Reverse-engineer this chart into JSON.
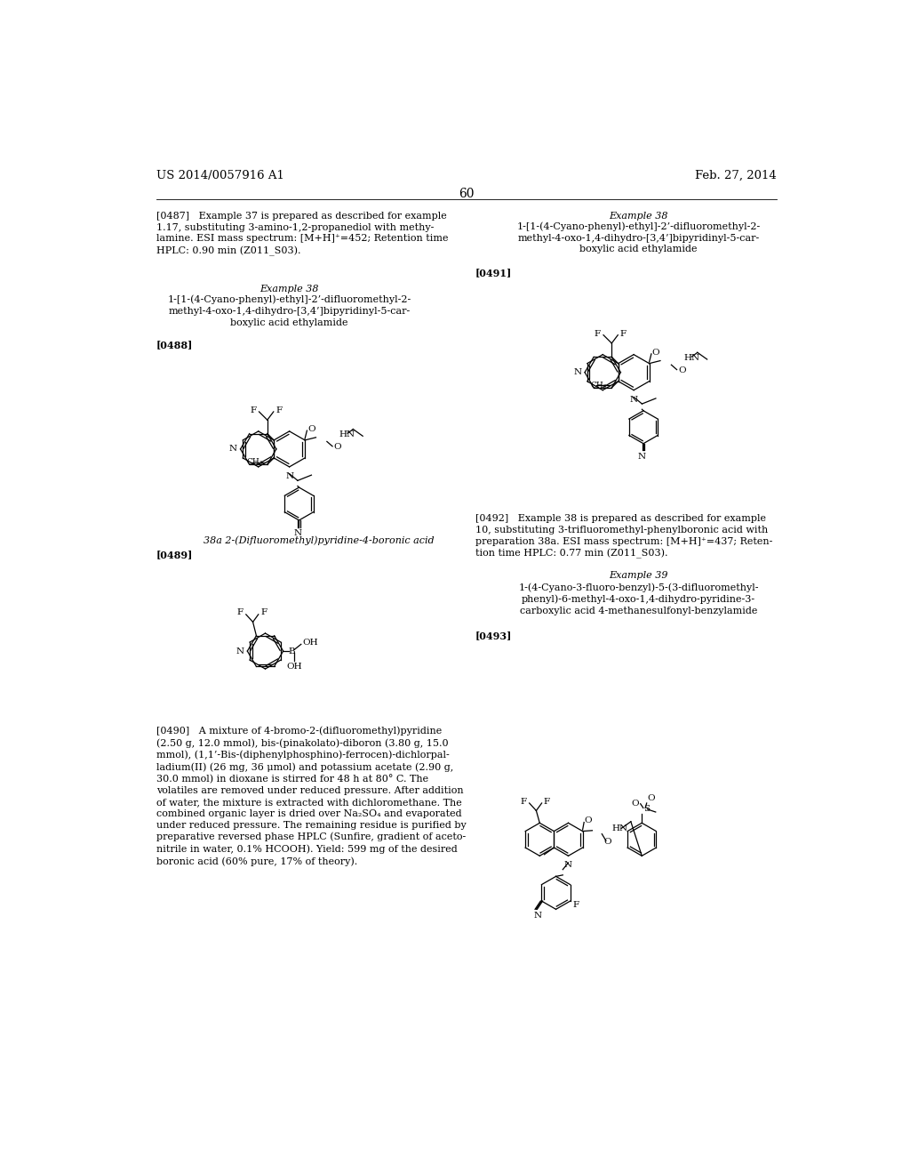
{
  "page_number": "60",
  "header_left": "US 2014/0057916 A1",
  "header_right": "Feb. 27, 2014",
  "background_color": "#ffffff",
  "text_color": "#000000",
  "font_size_body": 8.0,
  "font_size_header": 9.5,
  "texts": {
    "p0487": "[0487]   Example 37 is prepared as described for example\n1.17, substituting 3-amino-1,2-propanediol with methy-\nlamine. ESI mass spectrum: [M+H]⁺=452; Retention time\nHPLC: 0.90 min (Z011_S03).",
    "ex38_left_title": "Example 38",
    "compound_left_38": "1-[1-(4-Cyano-phenyl)-ethyl]-2’-difluoromethyl-2-\nmethyl-4-oxo-1,4-dihydro-[3,4’]bipyridinyl-5-car-\nboxylic acid ethylamide",
    "p0488": "[0488]",
    "label_38a": "38a 2-(Difluoromethyl)pyridine-4-boronic acid",
    "p0489": "[0489]",
    "p0490": "[0490]   A mixture of 4-bromo-2-(difluoromethyl)pyridine\n(2.50 g, 12.0 mmol), bis-(pinakolato)-diboron (3.80 g, 15.0\nmmol), (1,1’-Bis-(diphenylphosphino)-ferrocen)-dichlorpal-\nladium(II) (26 mg, 36 μmol) and potassium acetate (2.90 g,\n30.0 mmol) in dioxane is stirred for 48 h at 80° C. The\nvolatiles are removed under reduced pressure. After addition\nof water, the mixture is extracted with dichloromethane. The\ncombined organic layer is dried over Na₂SO₄ and evaporated\nunder reduced pressure. The remaining residue is purified by\npreparative reversed phase HPLC (Sunfire, gradient of aceto-\nnitrile in water, 0.1% HCOOH). Yield: 599 mg of the desired\nboronic acid (60% pure, 17% of theory).",
    "ex38_right_title": "Example 38",
    "compound_right_38": "1-[1-(4-Cyano-phenyl)-ethyl]-2’-difluoromethyl-2-\nmethyl-4-oxo-1,4-dihydro-[3,4’]bipyridinyl-5-car-\nboxylic acid ethylamide",
    "p0491": "[0491]",
    "p0492": "[0492]   Example 38 is prepared as described for example\n10, substituting 3-trifluoromethyl-phenylboronic acid with\npreparation 38a. ESI mass spectrum: [M+H]⁺=437; Reten-\ntion time HPLC: 0.77 min (Z011_S03).",
    "ex39_title": "Example 39",
    "compound_39": "1-(4-Cyano-3-fluoro-benzyl)-5-(3-difluoromethyl-\nphenyl)-6-methyl-4-oxo-1,4-dihydro-pyridine-3-\ncarboxylic acid 4-methanesulfonyl-benzylamide",
    "p0493": "[0493]"
  }
}
